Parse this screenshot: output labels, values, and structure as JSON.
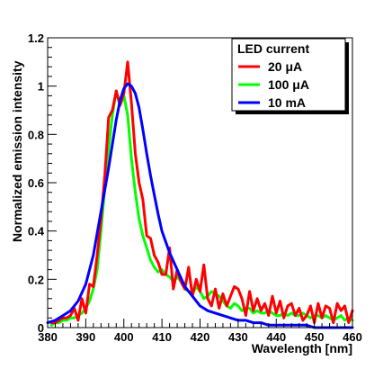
{
  "chart_data": {
    "type": "line",
    "title": "",
    "xlabel": "Wavelength [nm]",
    "ylabel": "Normalized emission intensity",
    "xlim": [
      380,
      460
    ],
    "ylim": [
      0,
      1.2
    ],
    "x_ticks": [
      380,
      390,
      400,
      410,
      420,
      430,
      440,
      450,
      460
    ],
    "y_ticks": [
      0,
      0.2,
      0.4,
      0.6,
      0.8,
      1,
      1.2
    ],
    "x_tick_labels": [
      "380",
      "390",
      "400",
      "410",
      "420",
      "430",
      "440",
      "450",
      "460"
    ],
    "y_tick_labels": [
      "0",
      "0.2",
      "0.4",
      "0.6",
      "0.8",
      "1",
      "1.2"
    ],
    "grid": false,
    "legend": {
      "title": "LED current",
      "position": "top-right"
    },
    "series": [
      {
        "name": "20 μA",
        "color": "#ff0000",
        "x": [
          381,
          382,
          383,
          384,
          385,
          386,
          387,
          388,
          389,
          390,
          391,
          392,
          393,
          394,
          395,
          396,
          397,
          398,
          399,
          400,
          401,
          402,
          403,
          404,
          405,
          406,
          407,
          408,
          409,
          410,
          411,
          412,
          413,
          414,
          415,
          416,
          417,
          418,
          419,
          420,
          421,
          422,
          423,
          424,
          425,
          426,
          427,
          428,
          429,
          430,
          431,
          432,
          433,
          434,
          435,
          436,
          437,
          438,
          439,
          440,
          441,
          442,
          443,
          444,
          445,
          446,
          447,
          448,
          449,
          450,
          451,
          452,
          453,
          454,
          455,
          456,
          457,
          458,
          459,
          460
        ],
        "values": [
          0.02,
          0.02,
          0.03,
          0.04,
          0.04,
          0.05,
          0.08,
          0.03,
          0.12,
          0.06,
          0.18,
          0.17,
          0.3,
          0.45,
          0.63,
          0.87,
          0.9,
          0.98,
          0.92,
          0.97,
          1.1,
          0.93,
          0.72,
          0.6,
          0.53,
          0.38,
          0.37,
          0.3,
          0.27,
          0.22,
          0.22,
          0.33,
          0.16,
          0.24,
          0.19,
          0.16,
          0.25,
          0.13,
          0.2,
          0.15,
          0.26,
          0.12,
          0.09,
          0.16,
          0.08,
          0.14,
          0.09,
          0.13,
          0.17,
          0.16,
          0.12,
          0.05,
          0.15,
          0.07,
          0.12,
          0.07,
          0.1,
          0.05,
          0.13,
          0.06,
          0.11,
          0.04,
          0.09,
          0.1,
          0.05,
          0.08,
          0.03,
          0.05,
          0.09,
          0.02,
          0.1,
          0.04,
          0.09,
          0.08,
          0.02,
          0.1,
          0.07,
          0.09,
          0.02,
          0.07
        ]
      },
      {
        "name": "100 μA",
        "color": "#00ff00",
        "x": [
          381,
          382,
          383,
          384,
          385,
          386,
          387,
          388,
          389,
          390,
          391,
          392,
          393,
          394,
          395,
          396,
          397,
          398,
          399,
          400,
          401,
          402,
          403,
          404,
          405,
          406,
          407,
          408,
          409,
          410,
          411,
          412,
          413,
          414,
          415,
          416,
          417,
          418,
          419,
          420,
          421,
          422,
          423,
          424,
          425,
          426,
          427,
          428,
          429,
          430,
          431,
          432,
          433,
          434,
          435,
          436,
          437,
          438,
          439,
          440,
          441,
          442,
          443,
          444,
          445,
          446,
          447,
          448,
          449,
          450,
          451,
          452,
          453,
          454,
          455,
          456,
          457,
          458,
          459,
          460
        ],
        "values": [
          0.01,
          0.02,
          0.02,
          0.03,
          0.03,
          0.04,
          0.04,
          0.05,
          0.06,
          0.08,
          0.11,
          0.16,
          0.24,
          0.4,
          0.58,
          0.74,
          0.88,
          0.98,
          0.92,
          0.96,
          0.88,
          0.7,
          0.56,
          0.45,
          0.38,
          0.33,
          0.28,
          0.25,
          0.23,
          0.24,
          0.22,
          0.21,
          0.19,
          0.21,
          0.19,
          0.16,
          0.15,
          0.14,
          0.17,
          0.15,
          0.12,
          0.13,
          0.15,
          0.14,
          0.13,
          0.11,
          0.09,
          0.08,
          0.1,
          0.09,
          0.07,
          0.08,
          0.08,
          0.06,
          0.07,
          0.06,
          0.06,
          0.07,
          0.06,
          0.05,
          0.05,
          0.06,
          0.05,
          0.06,
          0.05,
          0.05,
          0.06,
          0.05,
          0.04,
          0.05,
          0.05,
          0.04,
          0.05,
          0.04,
          0.03,
          0.04,
          0.05,
          0.03,
          0.04,
          0.03
        ]
      },
      {
        "name": "10 mA",
        "color": "#0000ff",
        "x": [
          380,
          382,
          384,
          386,
          388,
          390,
          392,
          394,
          396,
          397,
          398,
          399,
          400,
          401,
          402,
          403,
          404,
          405,
          406,
          407,
          408,
          409,
          410,
          412,
          414,
          416,
          418,
          420,
          422,
          424,
          426,
          428,
          430,
          432,
          434,
          436,
          438,
          440,
          442,
          444,
          446,
          448,
          450,
          452,
          454,
          456,
          458,
          460
        ],
        "values": [
          0.02,
          0.03,
          0.05,
          0.07,
          0.11,
          0.18,
          0.3,
          0.48,
          0.66,
          0.76,
          0.86,
          0.94,
          0.99,
          1.01,
          1.0,
          0.97,
          0.91,
          0.82,
          0.72,
          0.63,
          0.55,
          0.47,
          0.4,
          0.31,
          0.24,
          0.17,
          0.13,
          0.09,
          0.07,
          0.06,
          0.05,
          0.04,
          0.03,
          0.03,
          0.02,
          0.02,
          0.01,
          0.01,
          0.01,
          0.01,
          0.01,
          0.01,
          0.0,
          0.0,
          0.0,
          0.0,
          0.0,
          0.0
        ]
      }
    ]
  }
}
